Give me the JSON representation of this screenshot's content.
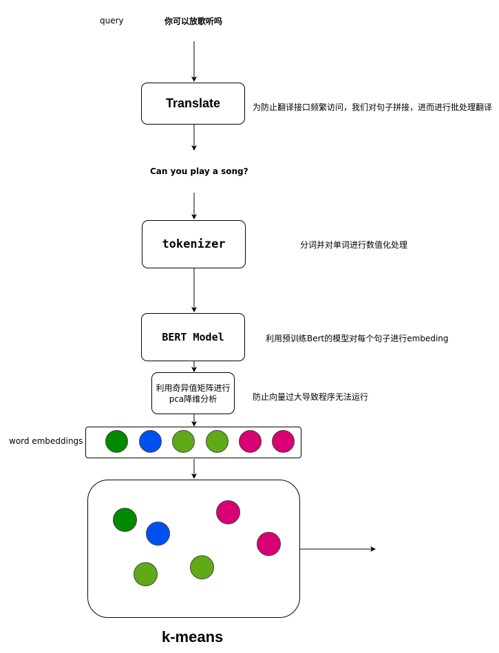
{
  "query": {
    "label": "query",
    "text": "你可以放歌听吗"
  },
  "translate": {
    "title": "Translate",
    "note": "为防止翻译接口频繁访问，我们对句子拼接，进而进行批处理翻译"
  },
  "translated": {
    "text": "Can you play a song?"
  },
  "tokenizer": {
    "title": "tokenizer",
    "note": "分词并对单词进行数值化处理"
  },
  "bert": {
    "title": "BERT Model",
    "note": "利用预训练Bert的模型对每个句子进行embeding"
  },
  "pca": {
    "line1": "利用奇异值矩阵进行",
    "line2": "pca降维分析",
    "note": "防止向量过大导致程序无法运行"
  },
  "embeddings": {
    "label": "word embeddings",
    "dots": [
      {
        "color": "#008a00"
      },
      {
        "color": "#0050ef"
      },
      {
        "color": "#60a917"
      },
      {
        "color": "#60a917"
      },
      {
        "color": "#d80073"
      },
      {
        "color": "#d80073"
      }
    ]
  },
  "kmeans": {
    "title": "k-means",
    "dots": [
      {
        "color": "#008a00"
      },
      {
        "color": "#0050ef"
      },
      {
        "color": "#60a917"
      },
      {
        "color": "#60a917"
      },
      {
        "color": "#d80073"
      },
      {
        "color": "#d80073"
      }
    ]
  },
  "colors": {
    "green": "#008a00",
    "blue": "#0050ef",
    "lightgreen": "#60a917",
    "magenta": "#d80073"
  }
}
